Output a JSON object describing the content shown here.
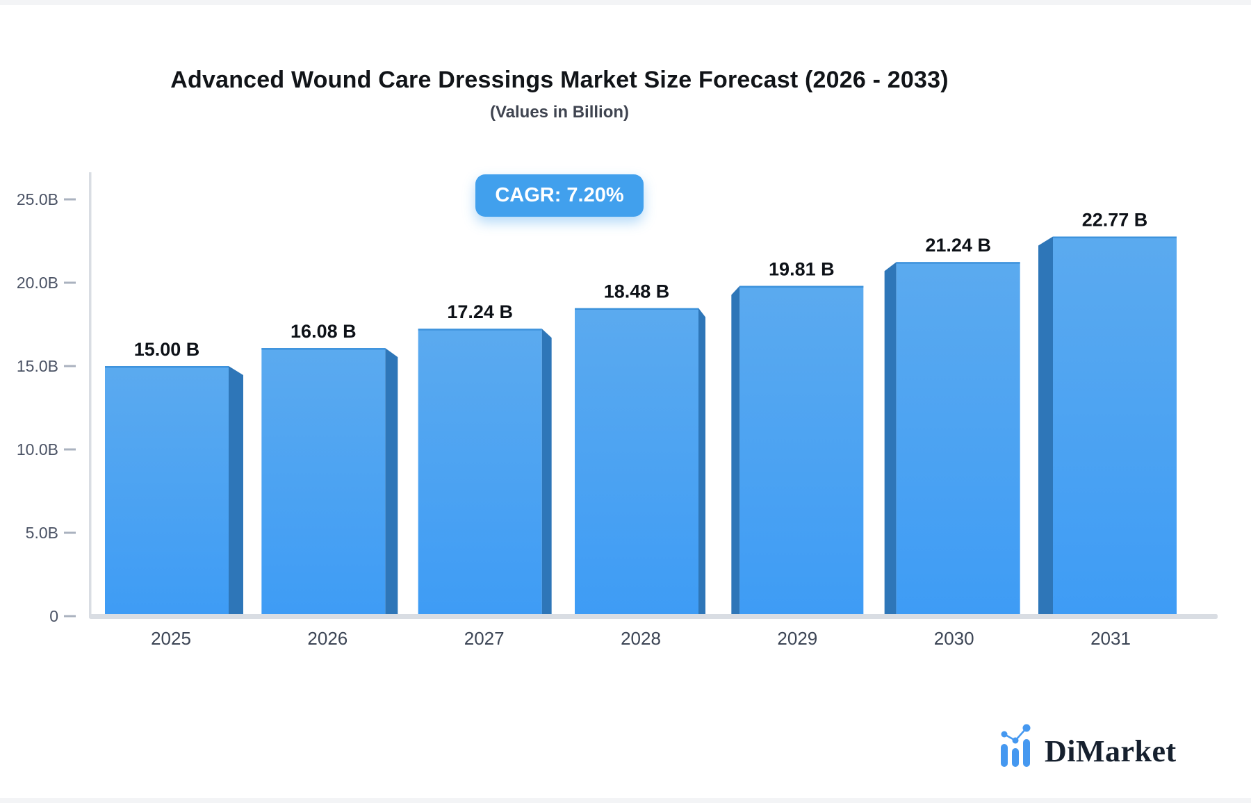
{
  "header": {
    "title": "Advanced Wound Care Dressings Market Size Forecast (2026 - 2033)",
    "subtitle": "(Values in Billion)",
    "cagr_label": "CAGR: 7.20%"
  },
  "chart_data": {
    "type": "bar",
    "title": "Advanced Wound Care Dressings Market Size Forecast (2026 - 2033)",
    "subtitle": "(Values in Billion)",
    "categories": [
      "2025",
      "2026",
      "2027",
      "2028",
      "2029",
      "2030",
      "2031"
    ],
    "values": [
      15.0,
      16.08,
      17.24,
      18.48,
      19.81,
      21.24,
      22.77
    ],
    "value_labels": [
      "15.00 B",
      "16.08 B",
      "17.24 B",
      "18.48 B",
      "19.81 B",
      "21.24 B",
      "22.77 B"
    ],
    "y_ticks": [
      {
        "value": 0,
        "label": "0"
      },
      {
        "value": 5,
        "label": "5.0B"
      },
      {
        "value": 10,
        "label": "10.0B"
      },
      {
        "value": 15,
        "label": "15.0B"
      },
      {
        "value": 20,
        "label": "20.0B"
      },
      {
        "value": 25,
        "label": "25.0B"
      }
    ],
    "ylim": [
      0,
      25
    ],
    "xlabel": "",
    "ylabel": "",
    "grid": false,
    "legend": false,
    "annotation": "CAGR: 7.20%"
  },
  "footer": {
    "brand": "DiMarket"
  },
  "colors": {
    "bar_top": "#5BAAEF",
    "bar_bottom": "#3E9CF5",
    "bar_side": "#2E76B8",
    "bar_top_stroke": "#3E93DC",
    "axis": "#D9DDE3",
    "tick_dash": "#AAB2BF",
    "y_label": "#4A5264",
    "x_label": "#3C4555",
    "value_label": "#0D1117",
    "badge_bg": "#41A0ED",
    "badge_text": "#FFFFFF",
    "brand_blue": "#4598F0",
    "brand_navy": "#16202E"
  }
}
